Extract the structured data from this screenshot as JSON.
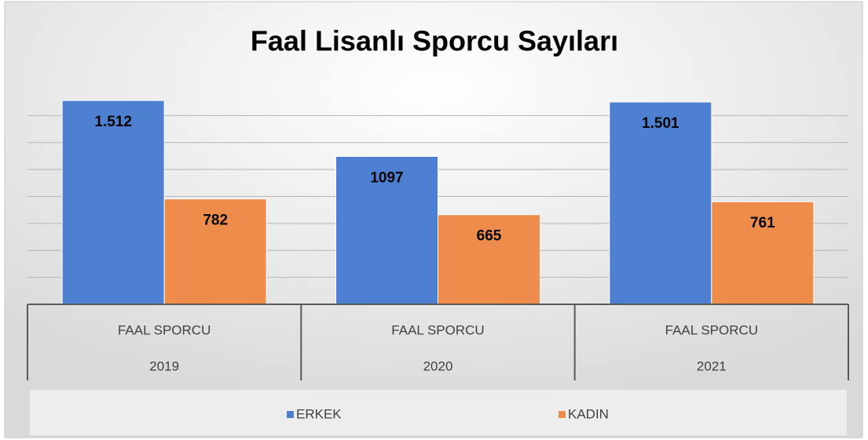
{
  "chart_data": {
    "type": "bar",
    "title": "Faal Lisanlı Sporcu Sayıları",
    "categories": [
      [
        "FAAL SPORCU",
        "2019"
      ],
      [
        "FAAL SPORCU",
        "2020"
      ],
      [
        "FAAL SPORCU",
        "2021"
      ]
    ],
    "series": [
      {
        "name": "ERKEK",
        "color": "#4e80d1",
        "values": [
          1512,
          1097,
          1501
        ],
        "value_labels": [
          "1.512",
          "1097",
          "1.501"
        ]
      },
      {
        "name": "KADIN",
        "color": "#ee8c4c",
        "values": [
          782,
          665,
          761
        ],
        "value_labels": [
          "782",
          "665",
          "761"
        ]
      }
    ],
    "ylim": [
      0,
      1600
    ],
    "yticks": [
      200,
      400,
      600,
      800,
      1000,
      1200,
      1400
    ],
    "grid": true,
    "legend": "bottom"
  }
}
